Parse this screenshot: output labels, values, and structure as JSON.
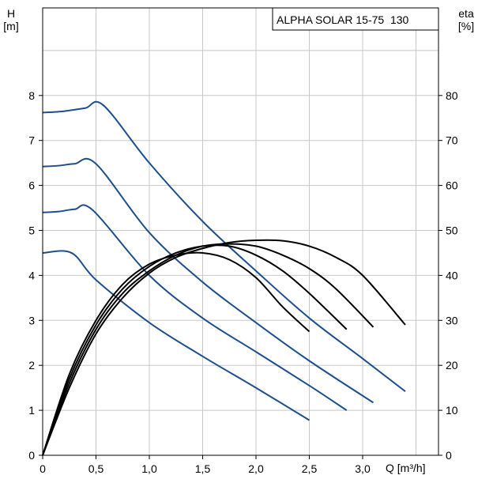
{
  "chart_data": {
    "type": "line",
    "title": "ALPHA SOLAR 15-75  130",
    "y_left_label": [
      "H",
      "[m]"
    ],
    "y_right_label": [
      "eta",
      "[%]"
    ],
    "x_label": "Q [m³/h]",
    "xlim": [
      0,
      3.7
    ],
    "ylim": [
      0,
      10
    ],
    "y2lim": [
      0,
      100
    ],
    "x_ticks": [
      0,
      0.5,
      1.0,
      1.5,
      2.0,
      2.5,
      3.0
    ],
    "x_tick_labels": [
      "0",
      "0,5",
      "1,0",
      "1,5",
      "2,0",
      "2,5",
      "3,0"
    ],
    "y_ticks": [
      0,
      1,
      2,
      3,
      4,
      5,
      6,
      7,
      8
    ],
    "y_tick_labels": [
      "0",
      "1",
      "2",
      "3",
      "4",
      "5",
      "6",
      "7",
      "8"
    ],
    "y2_ticks": [
      0,
      10,
      20,
      30,
      40,
      50,
      60,
      70,
      80
    ],
    "y2_tick_labels": [
      "0",
      "10",
      "20",
      "30",
      "40",
      "50",
      "60",
      "70",
      "80"
    ],
    "grid": true,
    "head_color": "#1f4e8c",
    "eta_color": "#000000",
    "head_curves": [
      {
        "x": [
          0,
          0.27,
          0.5,
          1.0,
          1.5,
          2.0,
          2.5
        ],
        "y": [
          4.5,
          4.5,
          3.9,
          2.95,
          2.2,
          1.5,
          0.78
        ]
      },
      {
        "x": [
          0,
          0.15,
          0.3,
          0.47,
          1.0,
          1.5,
          2.0,
          2.5,
          2.85
        ],
        "y": [
          5.4,
          5.42,
          5.47,
          5.45,
          4.0,
          3.05,
          2.3,
          1.55,
          1.0
        ]
      },
      {
        "x": [
          0,
          0.15,
          0.3,
          0.5,
          1.0,
          1.5,
          2.0,
          2.5,
          3.1
        ],
        "y": [
          6.42,
          6.44,
          6.48,
          6.48,
          4.95,
          3.85,
          2.95,
          2.1,
          1.17
        ]
      },
      {
        "x": [
          0,
          0.2,
          0.4,
          0.57,
          1.0,
          1.5,
          2.0,
          2.5,
          3.0,
          3.4
        ],
        "y": [
          7.62,
          7.65,
          7.72,
          7.78,
          6.5,
          5.2,
          4.1,
          3.05,
          2.15,
          1.42
        ]
      }
    ],
    "eta_curves": [
      {
        "x": [
          0,
          0.25,
          0.5,
          0.75,
          1.0,
          1.25,
          1.5,
          1.75,
          2.0,
          2.25,
          2.5
        ],
        "y": [
          0,
          18,
          30,
          38,
          42.5,
          44.5,
          45,
          43.5,
          39.5,
          33,
          27.5
        ]
      },
      {
        "x": [
          0,
          0.25,
          0.5,
          0.75,
          1.0,
          1.25,
          1.5,
          1.75,
          2.0,
          2.25,
          2.5,
          2.85
        ],
        "y": [
          0,
          17,
          29,
          37,
          42,
          45,
          46.5,
          46.5,
          44.5,
          41,
          36,
          28
        ]
      },
      {
        "x": [
          0,
          0.25,
          0.5,
          0.75,
          1.0,
          1.25,
          1.5,
          1.75,
          2.0,
          2.25,
          2.5,
          2.75,
          3.1
        ],
        "y": [
          0,
          16,
          28,
          36,
          41,
          44.5,
          46.5,
          47,
          46.5,
          44.5,
          41.5,
          37,
          28.5
        ]
      },
      {
        "x": [
          0,
          0.25,
          0.5,
          0.75,
          1.0,
          1.25,
          1.5,
          1.75,
          2.0,
          2.25,
          2.5,
          2.75,
          3.0,
          3.4
        ],
        "y": [
          0,
          15,
          27,
          35,
          40.5,
          44,
          46,
          47.3,
          47.8,
          47.7,
          46.5,
          44,
          40,
          29
        ]
      }
    ]
  }
}
